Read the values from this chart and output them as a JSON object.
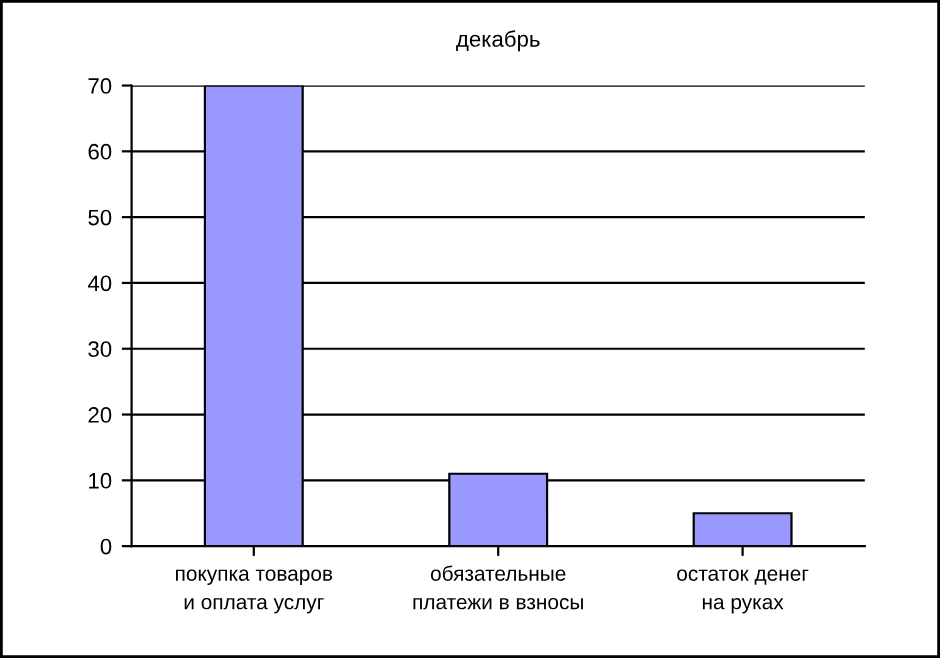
{
  "chart_data": {
    "type": "bar",
    "title": "декабрь",
    "categories": [
      "покупка товаров и оплата услуг",
      "обязательные платежи в взносы",
      "остаток денег на руках"
    ],
    "values": [
      70,
      11,
      5
    ],
    "color": "#9999ff",
    "ylim": [
      0,
      70
    ],
    "yticks": [
      0,
      10,
      20,
      30,
      40,
      50,
      60,
      70
    ],
    "grid": "y"
  }
}
